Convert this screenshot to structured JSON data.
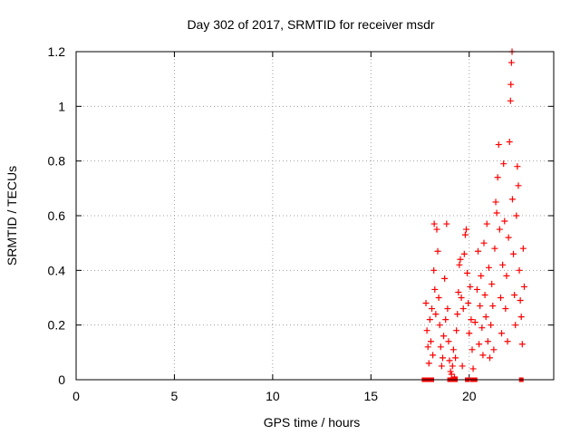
{
  "chart_data": {
    "type": "scatter",
    "title": "Day 302 of 2017, SRMTID for receiver msdr",
    "xlabel": "GPS time / hours",
    "ylabel": "SRMTID / TECUs",
    "xlim": [
      0,
      24.3
    ],
    "ylim": [
      0,
      1.2
    ],
    "x_ticks": [
      "0",
      "5",
      "10",
      "15",
      "20"
    ],
    "y_ticks": [
      "0",
      "0.2",
      "0.4",
      "0.6",
      "0.8",
      "1",
      "1.2"
    ],
    "grid": true,
    "legend": "none",
    "series": [
      {
        "marker": "+",
        "color": "#ff0000",
        "points": [
          [
            17.8,
            0.28
          ],
          [
            17.85,
            0.18
          ],
          [
            17.9,
            0.12
          ],
          [
            17.95,
            0.06
          ],
          [
            18.0,
            0.22
          ],
          [
            18.05,
            0.14
          ],
          [
            18.1,
            0.26
          ],
          [
            18.15,
            0.09
          ],
          [
            18.2,
            0.4
          ],
          [
            18.22,
            0.57
          ],
          [
            18.25,
            0.33
          ],
          [
            18.3,
            0.24
          ],
          [
            18.35,
            0.55
          ],
          [
            18.4,
            0.47
          ],
          [
            18.45,
            0.3
          ],
          [
            18.5,
            0.2
          ],
          [
            18.55,
            0.12
          ],
          [
            18.6,
            0.05
          ],
          [
            18.65,
            0.08
          ],
          [
            18.7,
            0.16
          ],
          [
            18.75,
            0.37
          ],
          [
            18.8,
            0.22
          ],
          [
            18.85,
            0.57
          ],
          [
            18.9,
            0.26
          ],
          [
            18.95,
            0.14
          ],
          [
            19.0,
            0.07
          ],
          [
            19.05,
            0.03
          ],
          [
            19.1,
            0.02
          ],
          [
            19.15,
            0.05
          ],
          [
            19.2,
            0.11
          ],
          [
            19.25,
            0.01
          ],
          [
            19.3,
            0.08
          ],
          [
            19.35,
            0.18
          ],
          [
            19.4,
            0.24
          ],
          [
            19.45,
            0.32
          ],
          [
            19.5,
            0.42
          ],
          [
            19.55,
            0.44
          ],
          [
            19.6,
            0.3
          ],
          [
            19.65,
            0.05
          ],
          [
            19.7,
            0.26
          ],
          [
            19.75,
            0.46
          ],
          [
            19.8,
            0.53
          ],
          [
            19.85,
            0.55
          ],
          [
            19.9,
            0.39
          ],
          [
            19.95,
            0.28
          ],
          [
            20.0,
            0.17
          ],
          [
            20.05,
            0.34
          ],
          [
            20.1,
            0.22
          ],
          [
            20.15,
            0.11
          ],
          [
            20.2,
            0.04
          ],
          [
            20.3,
            0.21
          ],
          [
            20.4,
            0.33
          ],
          [
            20.45,
            0.47
          ],
          [
            20.5,
            0.13
          ],
          [
            20.55,
            0.27
          ],
          [
            20.6,
            0.38
          ],
          [
            20.65,
            0.19
          ],
          [
            20.7,
            0.09
          ],
          [
            20.75,
            0.5
          ],
          [
            20.8,
            0.31
          ],
          [
            20.85,
            0.23
          ],
          [
            20.9,
            0.57
          ],
          [
            20.95,
            0.14
          ],
          [
            21.0,
            0.41
          ],
          [
            21.05,
            0.08
          ],
          [
            21.1,
            0.2
          ],
          [
            21.15,
            0.35
          ],
          [
            21.2,
            0.27
          ],
          [
            21.25,
            0.11
          ],
          [
            21.3,
            0.48
          ],
          [
            21.35,
            0.65
          ],
          [
            21.4,
            0.61
          ],
          [
            21.45,
            0.74
          ],
          [
            21.5,
            0.86
          ],
          [
            21.55,
            0.55
          ],
          [
            21.6,
            0.3
          ],
          [
            21.65,
            0.17
          ],
          [
            21.7,
            0.42
          ],
          [
            21.75,
            0.79
          ],
          [
            21.8,
            0.58
          ],
          [
            21.85,
            0.26
          ],
          [
            21.9,
            0.38
          ],
          [
            21.95,
            0.14
          ],
          [
            22.0,
            0.52
          ],
          [
            22.05,
            0.87
          ],
          [
            22.1,
            1.02
          ],
          [
            22.12,
            1.08
          ],
          [
            22.15,
            1.16
          ],
          [
            22.18,
            1.2
          ],
          [
            22.2,
            0.66
          ],
          [
            22.25,
            0.46
          ],
          [
            22.3,
            0.31
          ],
          [
            22.35,
            0.2
          ],
          [
            22.4,
            0.6
          ],
          [
            22.45,
            0.78
          ],
          [
            22.5,
            0.71
          ],
          [
            22.55,
            0.4
          ],
          [
            22.6,
            0.29
          ],
          [
            22.65,
            0.23
          ],
          [
            22.7,
            0.13
          ],
          [
            22.75,
            0.48
          ],
          [
            22.8,
            0.34
          ]
        ]
      },
      {
        "marker": "square",
        "color": "#ff0000",
        "points": [
          [
            17.7,
            0
          ],
          [
            17.85,
            0
          ],
          [
            18.0,
            0
          ],
          [
            18.1,
            0
          ],
          [
            19.0,
            0
          ],
          [
            19.15,
            0
          ],
          [
            19.3,
            0
          ],
          [
            19.9,
            0
          ],
          [
            20.15,
            0
          ],
          [
            20.3,
            0
          ],
          [
            22.65,
            0
          ]
        ]
      }
    ]
  }
}
